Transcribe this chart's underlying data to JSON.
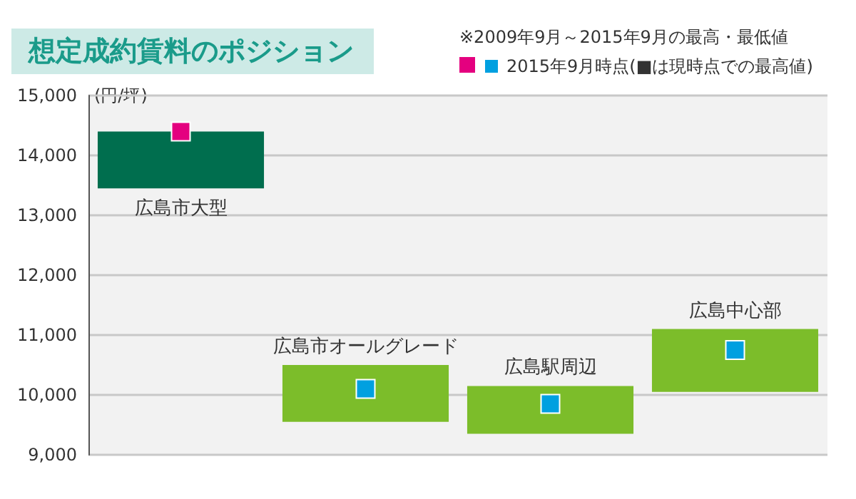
{
  "chart_data": {
    "type": "bar",
    "title": "想定成約賃料のポジション",
    "ylabel": "(円/坪)",
    "annotations": [
      "※2009年9月～2015年9月の最高・最低値"
    ],
    "categories": [
      "広島市大型",
      "広島市オールグレード",
      "広島駅周辺",
      "広島中心部"
    ],
    "tick_labels": "y",
    "series": [
      {
        "values": [
          950,
          950,
          800,
          1050
        ],
        "base": [
          13450,
          9550,
          9350,
          10050
        ],
        "colors": [
          "#006e4e",
          "#7cbd2a",
          "#7cbd2a",
          "#7cbd2a"
        ]
      },
      {
        "type": "scatter",
        "name": "2015年9月時点(■は現時点での最高値)",
        "x": [
          "広島市大型",
          "広島市オールグレード",
          "広島駅周辺",
          "広島中心部"
        ],
        "values": [
          14400,
          10100,
          9850,
          10750
        ],
        "colors": [
          "#e4007f",
          "#00a0e0",
          "#00a0e0",
          "#00a0e0"
        ],
        "marker": "square"
      }
    ],
    "ylim": [
      9000,
      15000
    ],
    "yticks": [
      {
        "value": 9000,
        "label": "9,000"
      },
      {
        "value": 10000,
        "label": "10,000"
      },
      {
        "value": 11000,
        "label": "11,000"
      },
      {
        "value": 12000,
        "label": "12,000"
      },
      {
        "value": 13000,
        "label": "13,000"
      },
      {
        "value": 14000,
        "label": "14,000"
      },
      {
        "value": 15000,
        "label": "15,000"
      }
    ],
    "grid": "y",
    "legend": "top right"
  }
}
